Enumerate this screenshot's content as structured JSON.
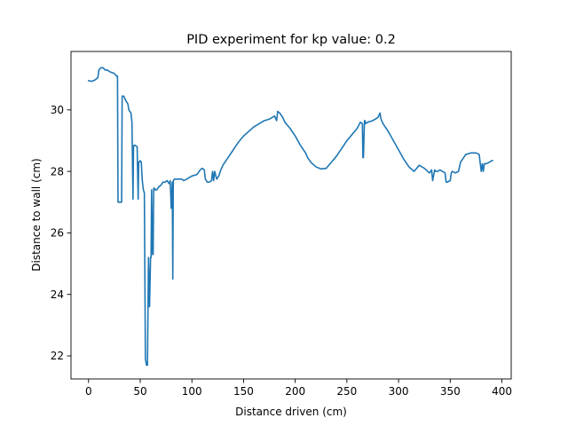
{
  "chart_data": {
    "type": "line",
    "title": "PID experiment for kp value: 0.2",
    "xlabel": "Distance driven (cm)",
    "ylabel": "Distance to wall (cm)",
    "xlim": [
      -17,
      409
    ],
    "ylim": [
      21.25,
      31.9
    ],
    "xticks": [
      0,
      50,
      100,
      150,
      200,
      250,
      300,
      350,
      400
    ],
    "yticks": [
      22,
      24,
      26,
      28,
      30
    ],
    "grid": false,
    "legend": "none",
    "series": [
      {
        "color": "#1f77b4",
        "x": [
          0,
          3,
          6,
          9,
          10,
          12,
          14,
          16,
          18,
          20,
          22,
          24,
          26,
          27,
          28,
          28.5,
          31,
          32,
          32.5,
          34,
          36,
          38,
          39,
          41,
          42,
          43,
          43.5,
          44,
          45,
          47,
          48,
          48.5,
          49,
          50,
          51,
          52,
          53,
          54,
          55,
          56,
          56.5,
          57,
          58,
          59,
          60,
          60.5,
          61,
          62,
          62.5,
          63,
          64,
          64.5,
          65,
          66,
          68,
          70,
          72,
          74,
          76,
          78,
          79,
          80,
          81,
          81.5,
          82,
          83,
          85,
          88,
          90,
          92,
          95,
          100,
          105,
          108,
          110,
          112,
          113,
          114,
          115,
          117,
          119,
          120,
          121,
          122,
          124,
          126,
          128,
          130,
          135,
          140,
          145,
          150,
          155,
          160,
          165,
          170,
          175,
          180,
          182,
          183,
          185,
          188,
          190,
          195,
          200,
          205,
          210,
          212,
          215,
          220,
          225,
          230,
          235,
          240,
          245,
          250,
          255,
          260,
          263,
          265,
          265.5,
          266,
          267,
          267.5,
          268,
          270,
          275,
          280,
          282,
          283,
          285,
          290,
          295,
          300,
          305,
          310,
          315,
          320,
          325,
          330,
          332,
          333,
          335,
          336,
          338,
          340,
          345,
          346,
          347,
          350,
          351,
          352,
          355,
          358,
          360,
          365,
          370,
          375,
          378,
          380,
          381,
          382,
          383,
          385,
          388,
          390,
          391
        ],
        "y": [
          30.95,
          30.93,
          30.97,
          31.05,
          31.3,
          31.37,
          31.37,
          31.3,
          31.3,
          31.25,
          31.22,
          31.2,
          31.15,
          31.1,
          31.1,
          27.0,
          27.0,
          27.0,
          30.45,
          30.45,
          30.3,
          30.2,
          30.0,
          29.9,
          29.6,
          27.1,
          28.8,
          28.85,
          28.85,
          28.8,
          27.1,
          28.3,
          28.3,
          28.35,
          28.3,
          27.7,
          27.4,
          27.3,
          21.9,
          21.7,
          21.7,
          21.7,
          25.2,
          23.6,
          25.2,
          25.2,
          27.4,
          25.3,
          25.3,
          27.45,
          27.45,
          27.4,
          27.4,
          27.4,
          27.5,
          27.55,
          27.65,
          27.65,
          27.7,
          27.6,
          27.7,
          26.8,
          27.65,
          24.5,
          27.7,
          27.75,
          27.75,
          27.75,
          27.75,
          27.7,
          27.75,
          27.85,
          27.9,
          28.05,
          28.1,
          28.05,
          27.75,
          27.7,
          27.65,
          27.65,
          27.7,
          28.0,
          27.7,
          28.0,
          27.75,
          27.85,
          28.05,
          28.2,
          28.45,
          28.7,
          28.95,
          29.15,
          29.3,
          29.45,
          29.55,
          29.65,
          29.7,
          29.8,
          29.65,
          29.95,
          29.9,
          29.75,
          29.6,
          29.4,
          29.15,
          28.85,
          28.6,
          28.45,
          28.3,
          28.15,
          28.08,
          28.1,
          28.3,
          28.5,
          28.75,
          29.0,
          29.2,
          29.4,
          29.6,
          29.55,
          28.45,
          28.45,
          29.65,
          29.65,
          29.55,
          29.6,
          29.65,
          29.75,
          29.9,
          29.7,
          29.55,
          29.3,
          29.0,
          28.7,
          28.4,
          28.15,
          28.0,
          28.2,
          28.1,
          27.95,
          28.05,
          27.7,
          28.05,
          28.0,
          28.0,
          28.05,
          27.95,
          27.65,
          27.65,
          27.7,
          27.95,
          28.0,
          27.95,
          28.0,
          28.3,
          28.55,
          28.6,
          28.6,
          28.55,
          28.0,
          28.25,
          28.0,
          28.25,
          28.25,
          28.3,
          28.35,
          28.35
        ]
      }
    ]
  }
}
